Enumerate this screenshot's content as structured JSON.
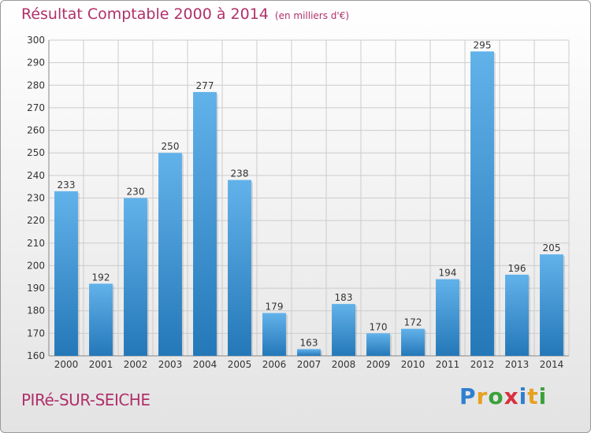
{
  "header": {
    "title": "Résultat Comptable 2000 à 2014",
    "subtitle": "(en milliers d'€)"
  },
  "footer": {
    "commune": "PIRé-SUR-SEICHE",
    "logo_letters": [
      "P",
      "r",
      "o",
      "x",
      "i",
      "t",
      "i"
    ],
    "logo_colors": [
      "#2f7fd0",
      "#e8a020",
      "#3aa03a",
      "#d83040",
      "#2f7fd0",
      "#e8a020",
      "#3aa03a"
    ]
  },
  "colors": {
    "bar_top": "#62b2ea",
    "bar_bottom": "#2478b8",
    "grid": "#cccccc",
    "title": "#b0306a"
  },
  "chart_data": {
    "type": "bar",
    "title": "Résultat Comptable 2000 à 2014",
    "subtitle": "(en milliers d'€)",
    "categories": [
      "2000",
      "2001",
      "2002",
      "2003",
      "2004",
      "2005",
      "2006",
      "2007",
      "2008",
      "2009",
      "2010",
      "2011",
      "2012",
      "2013",
      "2014"
    ],
    "values": [
      233,
      192,
      230,
      250,
      277,
      238,
      179,
      163,
      183,
      170,
      172,
      194,
      295,
      196,
      205
    ],
    "ylim": [
      160,
      300
    ],
    "yticks": [
      160,
      170,
      180,
      190,
      200,
      210,
      220,
      230,
      240,
      250,
      260,
      270,
      280,
      290,
      300
    ],
    "grid": true
  }
}
